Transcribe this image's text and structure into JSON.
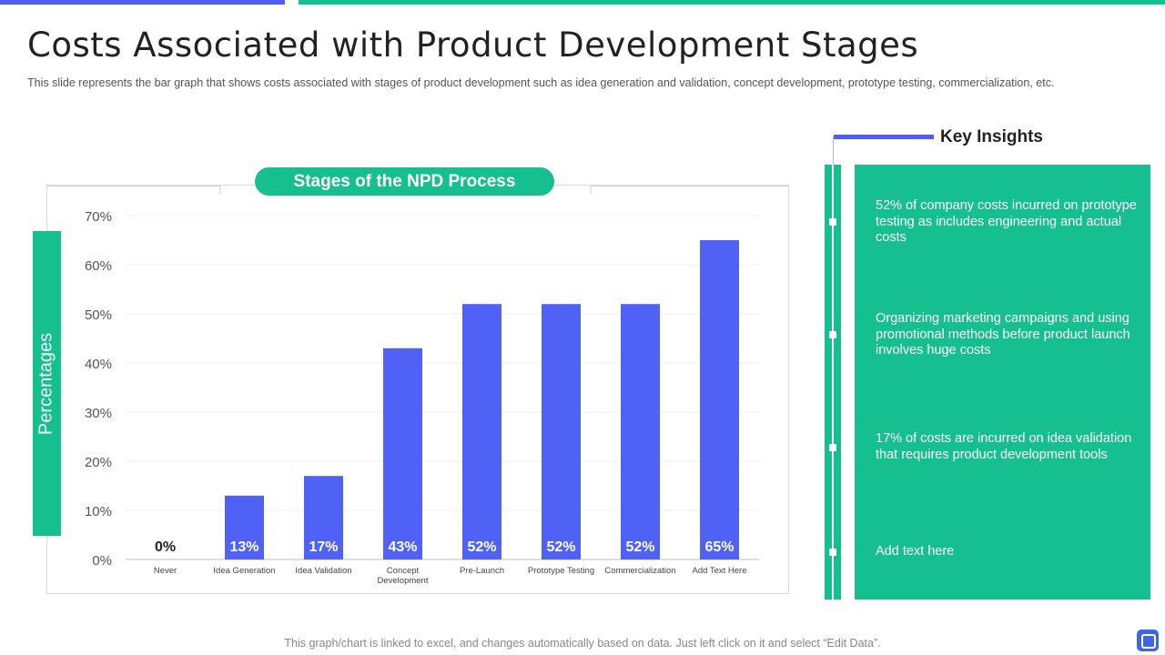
{
  "header": {
    "title": "Costs Associated with Product Development Stages",
    "subtitle": "This slide represents the bar graph that shows costs associated with stages of product development  such as idea generation and validation,  concept development,  prototype testing, commercialization, etc."
  },
  "colors": {
    "accent_green": "#16c08e",
    "accent_blue": "#4f5ef0",
    "bar_blue": "#5062f5"
  },
  "chart_data": {
    "type": "bar",
    "title": "Stages of the NPD Process",
    "ylabel": "Percentages",
    "xlabel": "",
    "ylim": [
      0,
      70
    ],
    "yticks": [
      0,
      10,
      20,
      30,
      40,
      50,
      60,
      70
    ],
    "ytick_labels": [
      "0%",
      "10%",
      "20%",
      "30%",
      "40%",
      "50%",
      "60%",
      "70%"
    ],
    "categories": [
      [
        "Never"
      ],
      [
        "Idea Generation"
      ],
      [
        "Idea Validation"
      ],
      [
        "Concept",
        "Development"
      ],
      [
        "Pre-Launch"
      ],
      [
        "Prototype Testing"
      ],
      [
        "Commercialization"
      ],
      [
        "Add Text Here"
      ]
    ],
    "values": [
      0,
      13,
      17,
      43,
      52,
      52,
      52,
      65
    ],
    "data_labels": [
      "0%",
      "13%",
      "17%",
      "43%",
      "52%",
      "52%",
      "52%",
      "65%"
    ],
    "grid": true
  },
  "insights": {
    "title": "Key Insights",
    "items": [
      "52% of company costs incurred on prototype testing as includes engineering and actual costs",
      "Organizing marketing campaigns and using promotional methods before product launch involves huge costs",
      "17% of costs are incurred on idea validation that requires product development tools",
      "Add text here"
    ]
  },
  "footer": {
    "note": "This graph/chart is linked to excel, and changes automatically based on data. Just left click on it and select “Edit Data”."
  }
}
